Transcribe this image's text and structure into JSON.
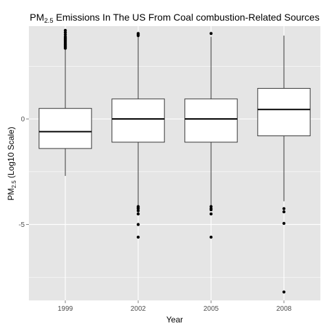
{
  "chart_data": {
    "type": "boxplot",
    "title": "PM2.5 Emissions In The US From Coal combustion-Related Sources",
    "title_parts": {
      "pre": "PM",
      "sub": "2.5",
      "post": " Emissions In The US From Coal combustion-Related Sources"
    },
    "xlabel": "Year",
    "ylabel": "PM2.5 (Log10 Scale)",
    "ylabel_parts": {
      "pre": "PM",
      "sub": "2.5",
      "post": " (Log10 Scale)"
    },
    "categories": [
      "1999",
      "2002",
      "2005",
      "2008"
    ],
    "y_ticks": [
      0,
      -5
    ],
    "y_tick_labels": [
      "0",
      "-5"
    ],
    "ylim": [
      -8.6,
      4.4
    ],
    "grid": true,
    "boxes": [
      {
        "category": "1999",
        "whisker_low": -2.7,
        "q1": -1.4,
        "median": -0.6,
        "q3": 0.5,
        "whisker_high": 3.3,
        "outliers": [
          3.35,
          3.4,
          3.45,
          3.5,
          3.55,
          3.6,
          3.65,
          3.7,
          3.75,
          3.8,
          3.85,
          3.9,
          4.0,
          4.1,
          4.2
        ]
      },
      {
        "category": "2002",
        "whisker_low": -4.1,
        "q1": -1.1,
        "median": 0.0,
        "q3": 0.95,
        "whisker_high": 3.9,
        "outliers": [
          3.95,
          4.0,
          4.05,
          -4.15,
          -4.2,
          -4.25,
          -4.35,
          -4.5,
          -5.0,
          -5.6
        ]
      },
      {
        "category": "2005",
        "whisker_low": -4.1,
        "q1": -1.1,
        "median": 0.0,
        "q3": 0.95,
        "whisker_high": 3.9,
        "outliers": [
          4.05,
          -4.15,
          -4.25,
          -4.3,
          -4.5,
          -5.6
        ]
      },
      {
        "category": "2008",
        "whisker_low": -3.9,
        "q1": -0.8,
        "median": 0.45,
        "q3": 1.45,
        "whisker_high": 3.95,
        "outliers": [
          -4.25,
          -4.4,
          -4.95,
          -8.2
        ]
      }
    ],
    "colors": {
      "panel": "#e5e5e5",
      "grid": "#ffffff",
      "box_fill": "#ffffff",
      "box_stroke": "#333333",
      "point": "#000000"
    }
  }
}
